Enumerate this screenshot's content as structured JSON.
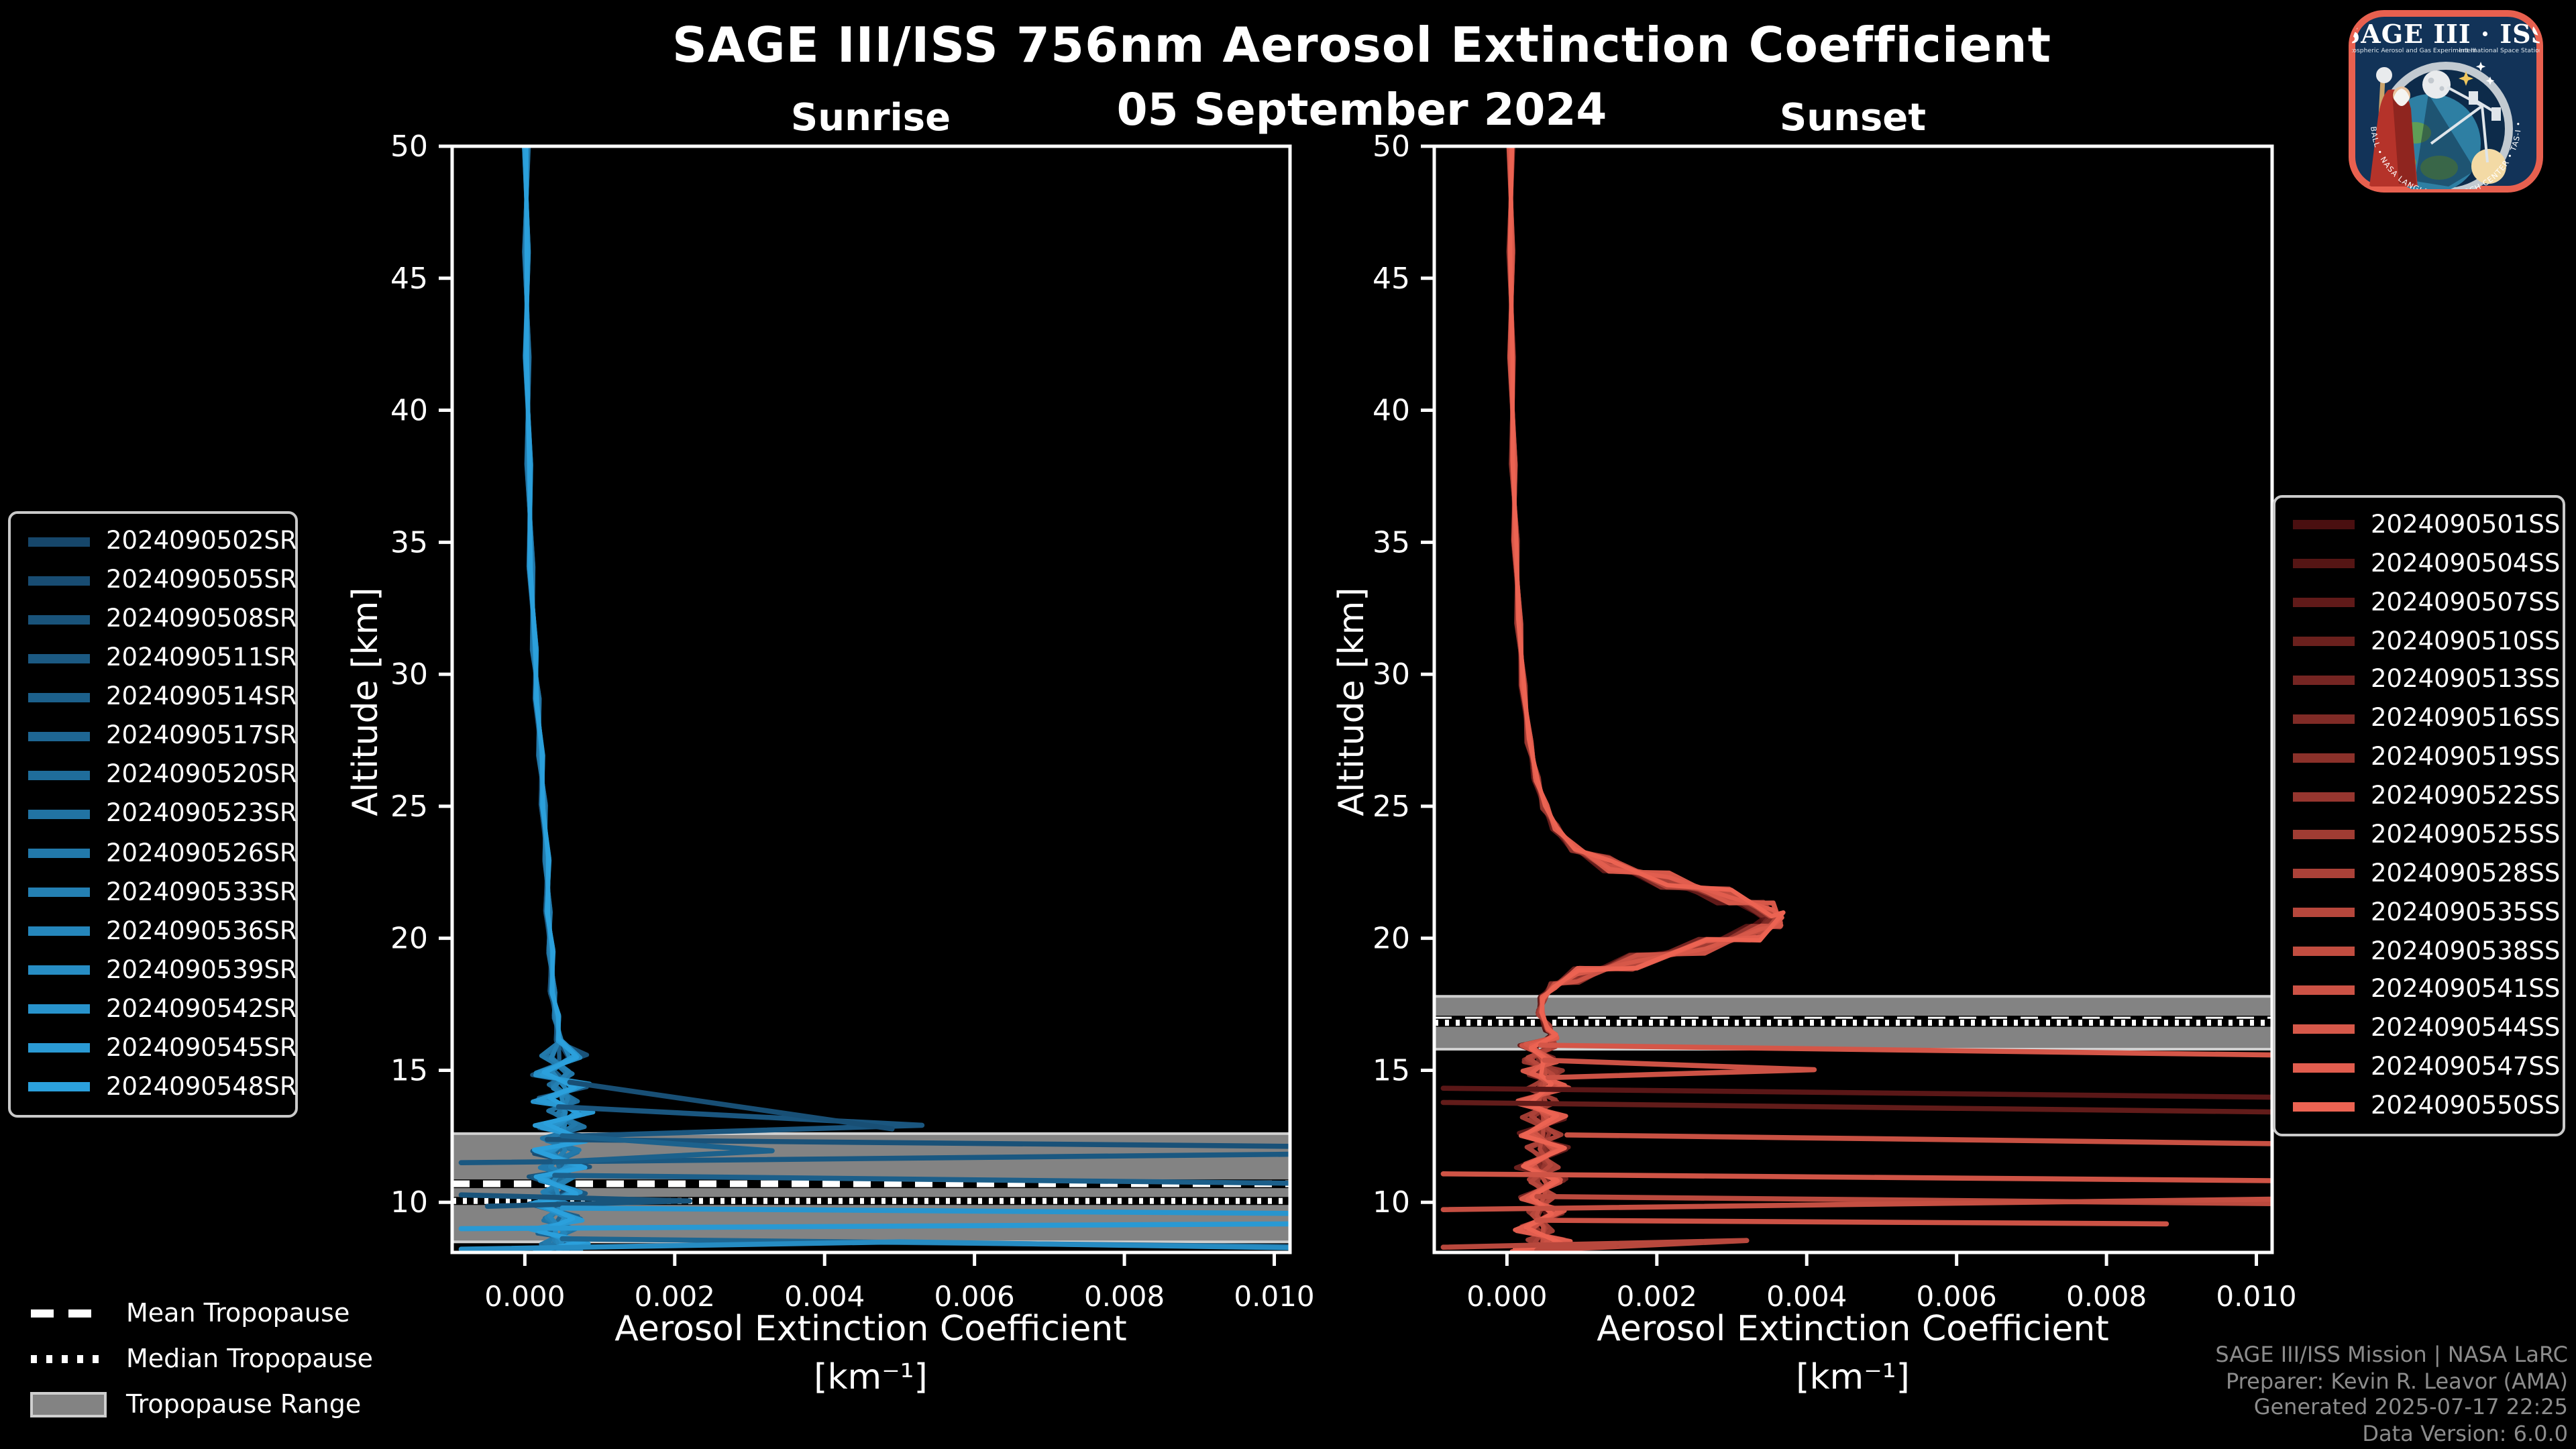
{
  "header": {
    "title": "SAGE III/ISS 756nm Aerosol Extinction Coefficient",
    "date": "05 September 2024"
  },
  "footer": {
    "lines": [
      "SAGE III/ISS Mission | NASA LaRC",
      "Preparer: Kevin R. Leavor (AMA)",
      "Generated 2025-07-17 22:25",
      "Data Version: 6.0.0"
    ],
    "color": "#8c8c8c"
  },
  "logo": {
    "title": "SAGE III · ISS",
    "subtitle_left": "Stratospheric Aerosol and Gas Experiment III",
    "subtitle_right": "International Space Station",
    "partners": "BALL • NASA LANGLEY RESEARCH CENTER • TAS-I • ESA",
    "border_color": "#e8604f",
    "bg_color": "#123358"
  },
  "tropopause_legend": {
    "items": [
      {
        "label": "Mean Tropopause",
        "style": "dashed"
      },
      {
        "label": "Median Tropopause",
        "style": "dotted"
      },
      {
        "label": "Tropopause Range",
        "style": "band"
      }
    ]
  },
  "palettes": {
    "sunrise": {
      "start": "#16466a",
      "end": "#2ba0dc"
    },
    "sunset": {
      "start": "#4a0f10",
      "end": "#ec6352"
    }
  },
  "colors": {
    "background": "#000000",
    "axes": "#ffffff",
    "tropopause_band": "#838383",
    "tropopause_band_edge": "#cfcfcf",
    "tropopause_lines": "#ffffff"
  },
  "chart_data": [
    {
      "type": "line",
      "panel": "sunrise",
      "title": "Sunrise",
      "xlabel": "Aerosol Extinction Coefficient",
      "xunit": "[km⁻¹]",
      "ylabel": "Altitude [km]",
      "xlim": [
        -0.00097,
        0.01021
      ],
      "ylim": [
        8.1,
        50
      ],
      "xticks": [
        0.0,
        0.002,
        0.004,
        0.006,
        0.008,
        0.01
      ],
      "xtick_labels": [
        "0.000",
        "0.002",
        "0.004",
        "0.006",
        "0.008",
        "0.010"
      ],
      "yticks": [
        10,
        15,
        20,
        25,
        30,
        35,
        40,
        45,
        50
      ],
      "grid": false,
      "legend_position": "outside-left",
      "tropopause": {
        "mean_km": 10.7,
        "median_km": 10.05,
        "range_km": [
          8.5,
          12.6
        ]
      },
      "events": [
        "2024090502SR",
        "2024090505SR",
        "2024090508SR",
        "2024090511SR",
        "2024090514SR",
        "2024090517SR",
        "2024090520SR",
        "2024090523SR",
        "2024090526SR",
        "2024090533SR",
        "2024090536SR",
        "2024090539SR",
        "2024090542SR",
        "2024090545SR",
        "2024090548SR"
      ],
      "mean_profile": [
        [
          2e-05,
          50
        ],
        [
          2e-05,
          46
        ],
        [
          3e-05,
          42
        ],
        [
          5e-05,
          38
        ],
        [
          8e-05,
          34
        ],
        [
          0.00012,
          31
        ],
        [
          0.00016,
          29
        ],
        [
          0.0002,
          27
        ],
        [
          0.00024,
          25
        ],
        [
          0.00028,
          23
        ],
        [
          0.0003,
          21
        ],
        [
          0.00033,
          19.5
        ],
        [
          0.00036,
          18
        ],
        [
          0.0004,
          17
        ],
        [
          0.00044,
          16.2
        ],
        [
          0.0005,
          15.5
        ],
        [
          0.0004,
          14.9
        ],
        [
          0.00056,
          14.4
        ],
        [
          0.00043,
          13.9
        ],
        [
          0.0006,
          13.4
        ],
        [
          0.00047,
          12.9
        ],
        [
          0.00056,
          12.4
        ],
        [
          0.00041,
          11.9
        ],
        [
          0.00053,
          11.4
        ],
        [
          0.00038,
          10.9
        ],
        [
          0.0005,
          10.4
        ],
        [
          0.00036,
          9.9
        ],
        [
          0.00048,
          9.4
        ],
        [
          0.0004,
          8.9
        ],
        [
          0.00052,
          8.5
        ],
        [
          0.00044,
          8.15
        ]
      ],
      "cloud_spikes": [
        {
          "t": 0.18,
          "points": [
            [
              0.00045,
              13.62
            ],
            [
              0.0053,
              12.92
            ],
            [
              0.00055,
              12.5
            ]
          ]
        },
        {
          "t": 0.1,
          "points": [
            [
              0.0006,
              14.55
            ],
            [
              0.0049,
              12.78
            ]
          ]
        },
        {
          "t": 0.12,
          "points": [
            [
              0.0003,
              12.38
            ],
            [
              0.0102,
              12.12
            ]
          ]
        },
        {
          "t": 0.2,
          "points": [
            [
              -0.00085,
              11.5
            ],
            [
              0.0102,
              11.82
            ]
          ]
        },
        {
          "t": 0.3,
          "points": [
            [
              0.0005,
              12.52
            ],
            [
              0.0033,
              11.95
            ],
            [
              0.0004,
              11.52
            ]
          ]
        },
        {
          "t": 0.28,
          "points": [
            [
              0.0004,
              11.02
            ],
            [
              0.0102,
              10.72
            ]
          ]
        },
        {
          "t": 0.15,
          "points": [
            [
              -0.00085,
              10.28
            ],
            [
              0.0022,
              10.05
            ],
            [
              -0.0005,
              9.85
            ]
          ]
        },
        {
          "t": 0.88,
          "points": [
            [
              0.0005,
              9.78
            ],
            [
              0.0102,
              9.58
            ]
          ]
        },
        {
          "t": 0.92,
          "points": [
            [
              -0.00085,
              9.0
            ],
            [
              0.0102,
              9.18
            ]
          ]
        },
        {
          "t": 0.35,
          "points": [
            [
              0.0005,
              8.62
            ],
            [
              0.0102,
              8.32
            ]
          ]
        },
        {
          "t": 0.78,
          "points": [
            [
              -0.00085,
              8.22
            ],
            [
              0.005,
              8.5
            ],
            [
              0.0102,
              8.28
            ]
          ]
        }
      ]
    },
    {
      "type": "line",
      "panel": "sunset",
      "title": "Sunset",
      "xlabel": "Aerosol Extinction Coefficient",
      "xunit": "[km⁻¹]",
      "ylabel": "Altitude [km]",
      "xlim": [
        -0.00097,
        0.01021
      ],
      "ylim": [
        8.1,
        50
      ],
      "xticks": [
        0.0,
        0.002,
        0.004,
        0.006,
        0.008,
        0.01
      ],
      "xtick_labels": [
        "0.000",
        "0.002",
        "0.004",
        "0.006",
        "0.008",
        "0.010"
      ],
      "yticks": [
        10,
        15,
        20,
        25,
        30,
        35,
        40,
        45,
        50
      ],
      "grid": false,
      "legend_position": "outside-right",
      "tropopause": {
        "mean_km": 16.9,
        "median_km": 16.8,
        "range_km": [
          15.8,
          17.8
        ]
      },
      "events": [
        "2024090501SS",
        "2024090504SS",
        "2024090507SS",
        "2024090510SS",
        "2024090513SS",
        "2024090516SS",
        "2024090519SS",
        "2024090522SS",
        "2024090525SS",
        "2024090528SS",
        "2024090535SS",
        "2024090538SS",
        "2024090541SS",
        "2024090544SS",
        "2024090547SS",
        "2024090550SS"
      ],
      "mean_profile": [
        [
          5e-05,
          50
        ],
        [
          5e-05,
          46
        ],
        [
          6e-05,
          42
        ],
        [
          8e-05,
          38
        ],
        [
          0.00011,
          35
        ],
        [
          0.00015,
          32
        ],
        [
          0.00021,
          29.5
        ],
        [
          0.00028,
          27.5
        ],
        [
          0.00038,
          26
        ],
        [
          0.00048,
          25
        ],
        [
          0.00062,
          24.2
        ],
        [
          0.00085,
          23.4
        ],
        [
          0.0013,
          22.8
        ],
        [
          0.002,
          22.2
        ],
        [
          0.0028,
          21.6
        ],
        [
          0.0033,
          21.1
        ],
        [
          0.00345,
          20.7
        ],
        [
          0.00315,
          20.2
        ],
        [
          0.0025,
          19.7
        ],
        [
          0.0016,
          19.1
        ],
        [
          0.0009,
          18.6
        ],
        [
          0.00058,
          18.2
        ],
        [
          0.00046,
          17.7
        ],
        [
          0.00042,
          17.2
        ],
        [
          0.00052,
          16.6
        ],
        [
          0.0006,
          16.3
        ],
        [
          0.00044,
          15.9
        ],
        [
          0.00042,
          15.4
        ],
        [
          0.0005,
          14.9
        ],
        [
          0.00054,
          14.4
        ],
        [
          0.0004,
          13.8
        ],
        [
          0.0005,
          13.2
        ],
        [
          0.00044,
          12.6
        ],
        [
          0.00054,
          12.0
        ],
        [
          0.00042,
          11.4
        ],
        [
          0.00052,
          10.8
        ],
        [
          0.00044,
          10.2
        ],
        [
          0.0005,
          9.6
        ],
        [
          0.00038,
          9.0
        ],
        [
          0.00055,
          8.5
        ],
        [
          0.00035,
          8.15
        ]
      ],
      "cloud_spikes": [
        {
          "t": 0.85,
          "points": [
            [
              0.00045,
              15.95
            ],
            [
              0.0102,
              15.58
            ]
          ]
        },
        {
          "t": 0.8,
          "points": [
            [
              0.0005,
              15.38
            ],
            [
              0.0041,
              15.02
            ],
            [
              0.00055,
              14.72
            ]
          ]
        },
        {
          "t": 0.1,
          "points": [
            [
              -0.00085,
              14.32
            ],
            [
              0.0102,
              13.98
            ]
          ]
        },
        {
          "t": 0.15,
          "points": [
            [
              -0.00085,
              13.78
            ],
            [
              0.0102,
              13.42
            ]
          ]
        },
        {
          "t": 0.78,
          "points": [
            [
              0.0008,
              12.55
            ],
            [
              0.0102,
              12.22
            ]
          ]
        },
        {
          "t": 0.82,
          "points": [
            [
              -0.00085,
              11.08
            ],
            [
              0.0102,
              10.82
            ]
          ]
        },
        {
          "t": 0.7,
          "points": [
            [
              0.0004,
              10.22
            ],
            [
              0.0102,
              9.95
            ]
          ]
        },
        {
          "t": 0.76,
          "points": [
            [
              -0.00085,
              9.72
            ],
            [
              0.0102,
              10.12
            ]
          ]
        },
        {
          "t": 0.8,
          "points": [
            [
              0.0004,
              9.32
            ],
            [
              0.0088,
              9.18
            ]
          ]
        },
        {
          "t": 0.68,
          "points": [
            [
              -0.00085,
              8.3
            ],
            [
              0.0032,
              8.55
            ],
            [
              0.0004,
              8.18
            ]
          ]
        }
      ]
    }
  ]
}
